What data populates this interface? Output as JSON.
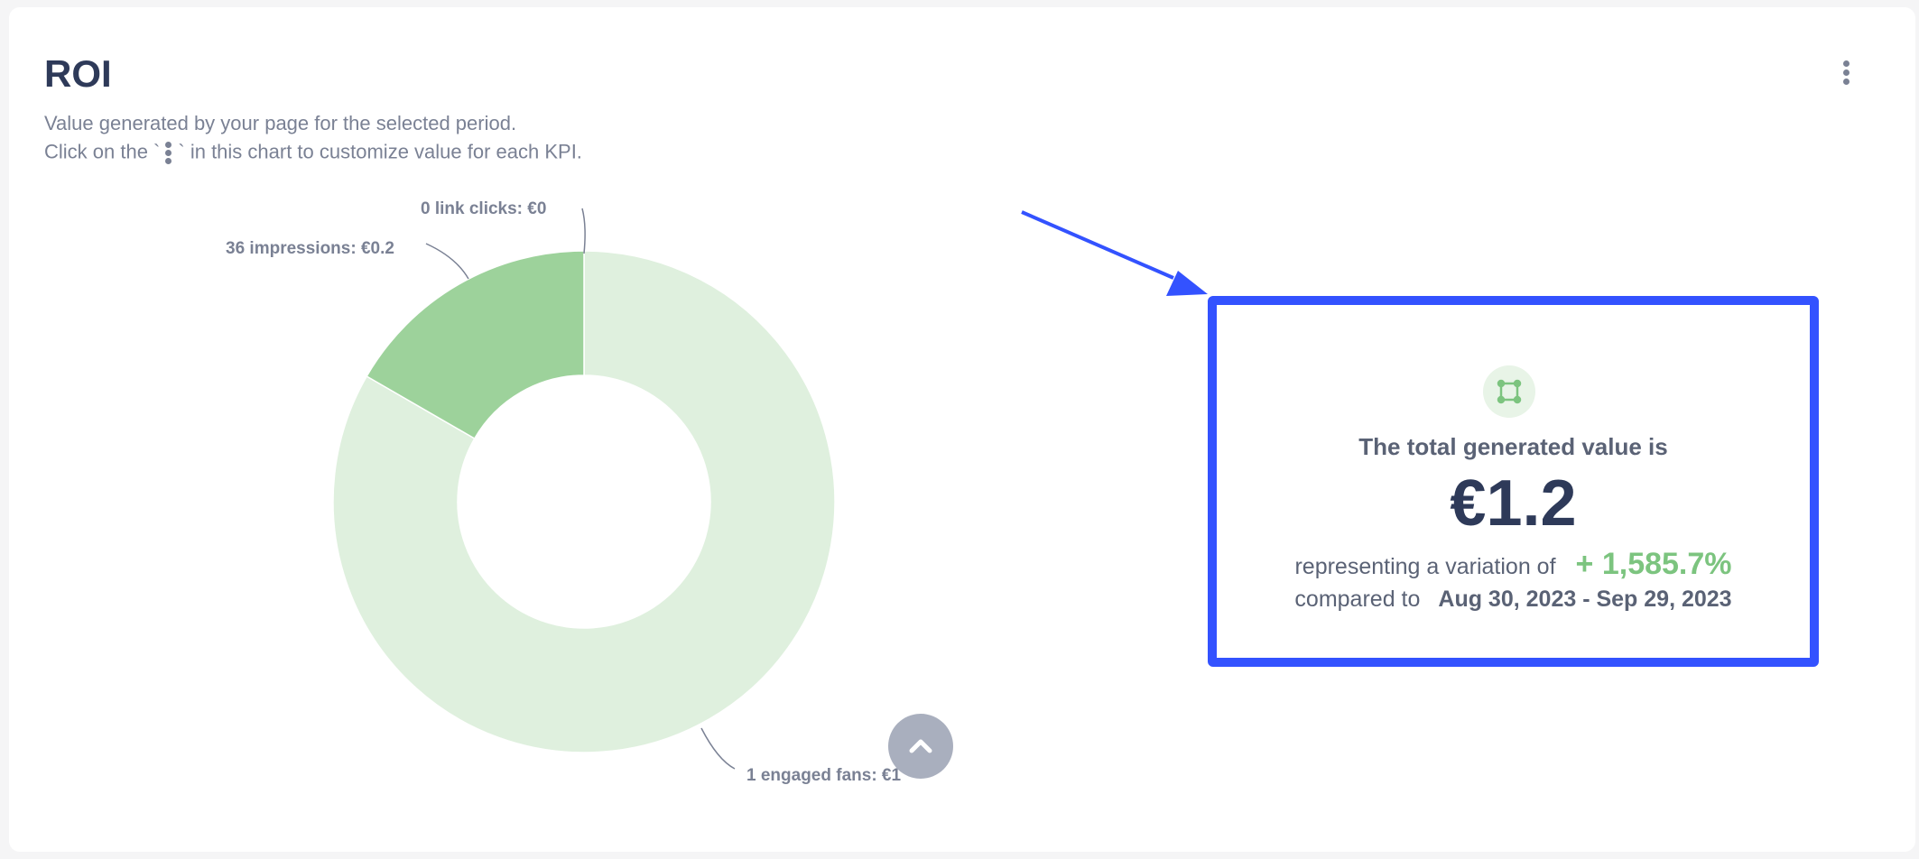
{
  "header": {
    "title": "ROI",
    "subtitle_line1": "Value generated by your page for the selected period.",
    "subtitle_line2_before": "Click on the `",
    "subtitle_line2_after": "` in this chart to customize value for each KPI.",
    "menu_icon": "kebab-vertical-icon"
  },
  "chart_data": {
    "type": "pie",
    "donut": true,
    "slices": [
      {
        "label": "1 engaged fans: €1",
        "kpi": "engaged fans",
        "count": 1,
        "value": 1,
        "color": "#dff0de"
      },
      {
        "label": "36 impressions: €0.2",
        "kpi": "impressions",
        "count": 36,
        "value": 0.2,
        "color": "#9dd29b"
      },
      {
        "label": "0 link clicks: €0",
        "kpi": "link clicks",
        "count": 0,
        "value": 0,
        "color": "#7cc47f"
      }
    ]
  },
  "summary": {
    "icon": "frame-nodes-icon",
    "heading": "The total generated value is",
    "total": "€1.2",
    "variation_label": "representing a variation of",
    "variation_value": "+ 1,585.7%",
    "compared_label": "compared to",
    "compared_period": "Aug 30, 2023 - Sep 29, 2023",
    "highlight_color": "#3352ff",
    "positive_color": "#7cc47f"
  },
  "scroll_top": {
    "icon": "chevron-up-icon"
  }
}
